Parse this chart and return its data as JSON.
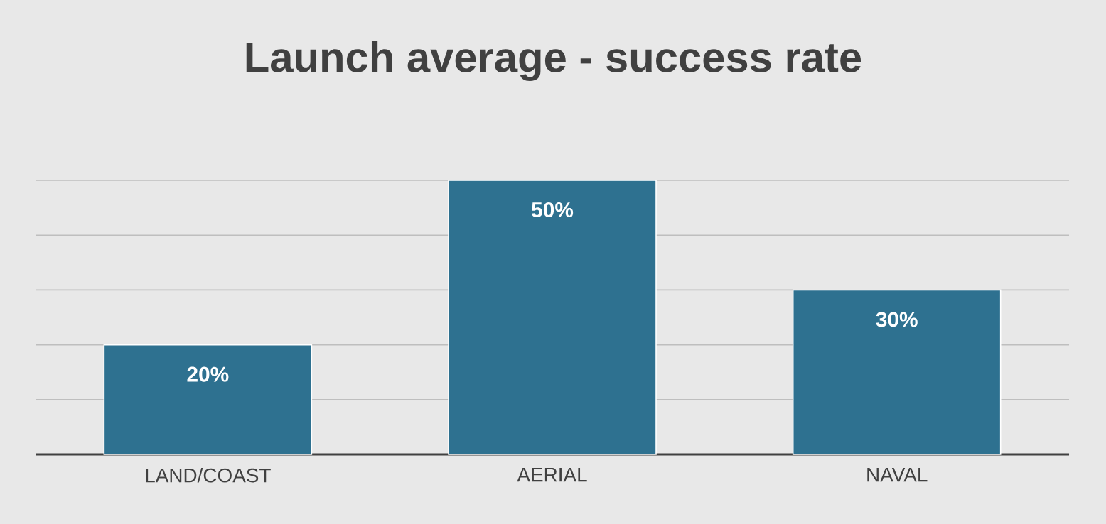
{
  "chart_data": {
    "type": "bar",
    "title": "Launch average - success rate",
    "categories": [
      "LAND/COAST",
      "AERIAL",
      "NAVAL"
    ],
    "values": [
      20,
      50,
      30
    ],
    "color": "#2e7190",
    "value_labels": [
      "20%",
      "50%",
      "30%"
    ],
    "ylim": [
      0,
      50
    ],
    "tick_labels": "x",
    "grid": "y"
  }
}
